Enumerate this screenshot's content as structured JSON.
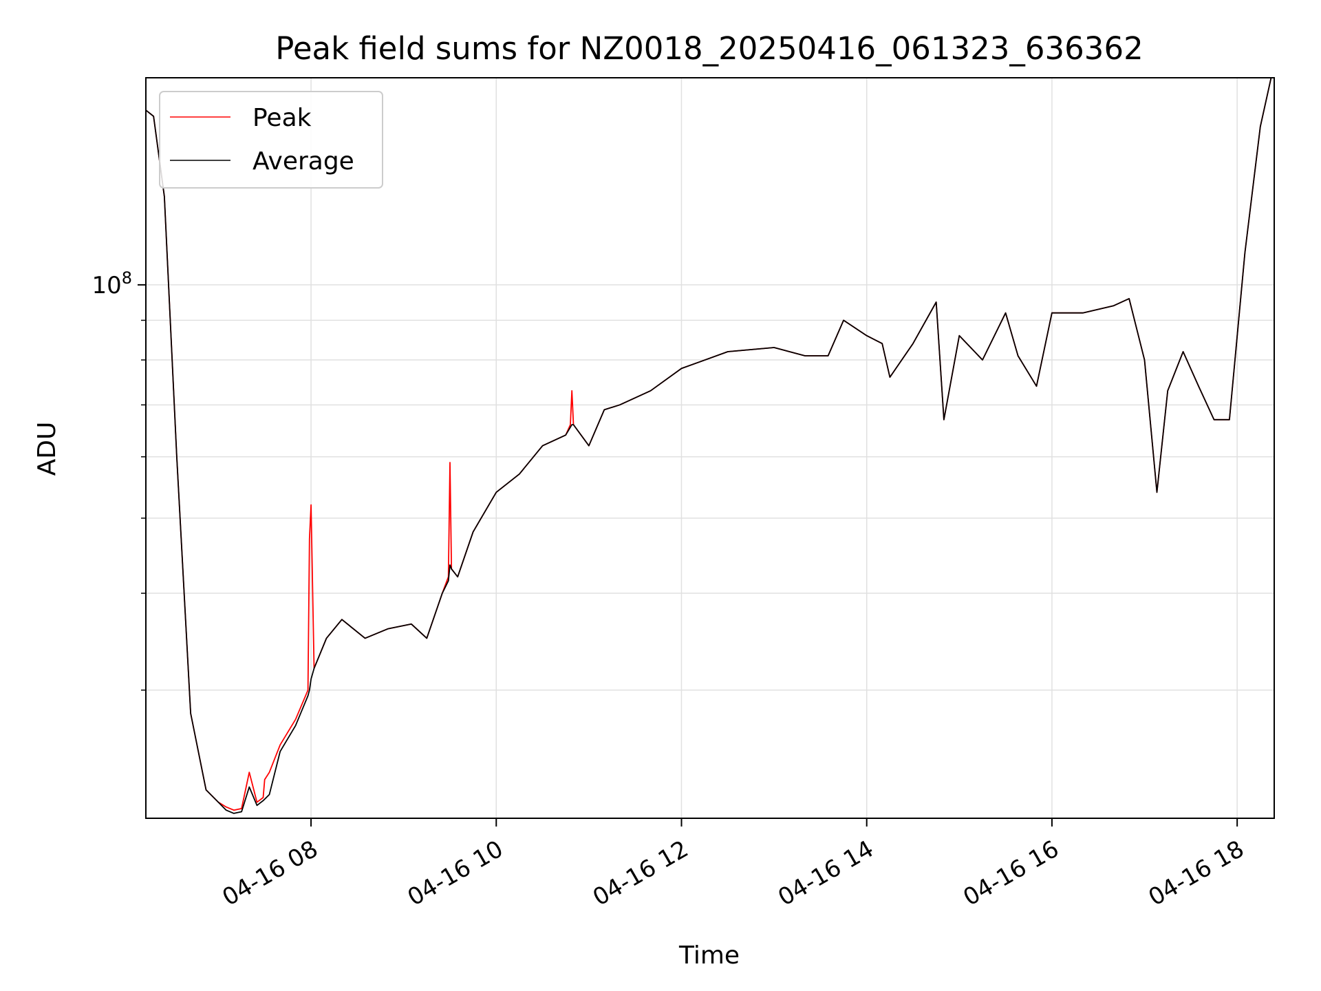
{
  "chart_data": {
    "type": "line",
    "title": "Peak field sums for NZ0018_20250416_061323_636362",
    "xlabel": "Time",
    "ylabel": "ADU",
    "yscale": "log",
    "ylim": [
      20500000,
      185000000
    ],
    "x_tick_labels": [
      "04-16 08",
      "04-16 10",
      "04-16 12",
      "04-16 14",
      "04-16 16",
      "04-16 18"
    ],
    "x_ticks": [
      "2025-04-16 08:00",
      "2025-04-16 10:00",
      "2025-04-16 12:00",
      "2025-04-16 14:00",
      "2025-04-16 16:00",
      "2025-04-16 18:00"
    ],
    "xlim": [
      "2025-04-16 06:13",
      "2025-04-16 18:24"
    ],
    "y_tick_labels": [
      {
        "base": "10",
        "exp": "8",
        "value": 100000000
      }
    ],
    "grid": true,
    "legend_position": "upper left",
    "colors": {
      "peak": "#ff0000",
      "average": "#000000",
      "grid": "#e0e0e0"
    },
    "series": [
      {
        "name": "Peak",
        "x": [
          "2025-04-16 06:13",
          "2025-04-16 06:18",
          "2025-04-16 06:25",
          "2025-04-16 06:33",
          "2025-04-16 06:42",
          "2025-04-16 06:52",
          "2025-04-16 07:00",
          "2025-04-16 07:05",
          "2025-04-16 07:10",
          "2025-04-16 07:15",
          "2025-04-16 07:20",
          "2025-04-16 07:25",
          "2025-04-16 07:29",
          "2025-04-16 07:30",
          "2025-04-16 07:33",
          "2025-04-16 07:40",
          "2025-04-16 07:50",
          "2025-04-16 07:58",
          "2025-04-16 07:59",
          "2025-04-16 08:00",
          "2025-04-16 08:02",
          "2025-04-16 08:10",
          "2025-04-16 08:20",
          "2025-04-16 08:35",
          "2025-04-16 08:50",
          "2025-04-16 09:05",
          "2025-04-16 09:15",
          "2025-04-16 09:25",
          "2025-04-16 09:29",
          "2025-04-16 09:30",
          "2025-04-16 09:31",
          "2025-04-16 09:35",
          "2025-04-16 09:45",
          "2025-04-16 10:00",
          "2025-04-16 10:15",
          "2025-04-16 10:30",
          "2025-04-16 10:45",
          "2025-04-16 10:48",
          "2025-04-16 10:49",
          "2025-04-16 10:50",
          "2025-04-16 11:00",
          "2025-04-16 11:10",
          "2025-04-16 11:20",
          "2025-04-16 11:40",
          "2025-04-16 12:00",
          "2025-04-16 12:30",
          "2025-04-16 13:00",
          "2025-04-16 13:20",
          "2025-04-16 13:35",
          "2025-04-16 13:45",
          "2025-04-16 14:00",
          "2025-04-16 14:10",
          "2025-04-16 14:15",
          "2025-04-16 14:30",
          "2025-04-16 14:45",
          "2025-04-16 14:50",
          "2025-04-16 15:00",
          "2025-04-16 15:15",
          "2025-04-16 15:30",
          "2025-04-16 15:38",
          "2025-04-16 15:50",
          "2025-04-16 16:00",
          "2025-04-16 16:20",
          "2025-04-16 16:40",
          "2025-04-16 16:50",
          "2025-04-16 17:00",
          "2025-04-16 17:08",
          "2025-04-16 17:15",
          "2025-04-16 17:25",
          "2025-04-16 17:35",
          "2025-04-16 17:45",
          "2025-04-16 17:55",
          "2025-04-16 18:05",
          "2025-04-16 18:15",
          "2025-04-16 18:22"
        ],
        "values": [
          168000000,
          165000000,
          130000000,
          60000000,
          28000000,
          22300000,
          21500000,
          21200000,
          21000000,
          21100000,
          23500000,
          21500000,
          21800000,
          23000000,
          23500000,
          25500000,
          27500000,
          30000000,
          47000000,
          52000000,
          32000000,
          35000000,
          37000000,
          35000000,
          36000000,
          36500000,
          35000000,
          40000000,
          42000000,
          59000000,
          43000000,
          42000000,
          48000000,
          54000000,
          57000000,
          62000000,
          64000000,
          66000000,
          73000000,
          66000000,
          62000000,
          69000000,
          70000000,
          73000000,
          78000000,
          82000000,
          83000000,
          81000000,
          81000000,
          90000000,
          86000000,
          84000000,
          76000000,
          84000000,
          95000000,
          67000000,
          86000000,
          80000000,
          92000000,
          81000000,
          74000000,
          92000000,
          92000000,
          94000000,
          96000000,
          80000000,
          54000000,
          73000000,
          82000000,
          74000000,
          67000000,
          67000000,
          110000000,
          160000000,
          185000000
        ]
      },
      {
        "name": "Average",
        "x": [
          "2025-04-16 06:13",
          "2025-04-16 06:18",
          "2025-04-16 06:25",
          "2025-04-16 06:33",
          "2025-04-16 06:42",
          "2025-04-16 06:52",
          "2025-04-16 07:00",
          "2025-04-16 07:05",
          "2025-04-16 07:10",
          "2025-04-16 07:15",
          "2025-04-16 07:20",
          "2025-04-16 07:25",
          "2025-04-16 07:29",
          "2025-04-16 07:30",
          "2025-04-16 07:33",
          "2025-04-16 07:40",
          "2025-04-16 07:50",
          "2025-04-16 07:58",
          "2025-04-16 07:59",
          "2025-04-16 08:00",
          "2025-04-16 08:02",
          "2025-04-16 08:10",
          "2025-04-16 08:20",
          "2025-04-16 08:35",
          "2025-04-16 08:50",
          "2025-04-16 09:05",
          "2025-04-16 09:15",
          "2025-04-16 09:25",
          "2025-04-16 09:29",
          "2025-04-16 09:30",
          "2025-04-16 09:31",
          "2025-04-16 09:35",
          "2025-04-16 09:45",
          "2025-04-16 10:00",
          "2025-04-16 10:15",
          "2025-04-16 10:30",
          "2025-04-16 10:45",
          "2025-04-16 10:48",
          "2025-04-16 10:49",
          "2025-04-16 10:50",
          "2025-04-16 11:00",
          "2025-04-16 11:10",
          "2025-04-16 11:20",
          "2025-04-16 11:40",
          "2025-04-16 12:00",
          "2025-04-16 12:30",
          "2025-04-16 13:00",
          "2025-04-16 13:20",
          "2025-04-16 13:35",
          "2025-04-16 13:45",
          "2025-04-16 14:00",
          "2025-04-16 14:10",
          "2025-04-16 14:15",
          "2025-04-16 14:30",
          "2025-04-16 14:45",
          "2025-04-16 14:50",
          "2025-04-16 15:00",
          "2025-04-16 15:15",
          "2025-04-16 15:30",
          "2025-04-16 15:38",
          "2025-04-16 15:50",
          "2025-04-16 16:00",
          "2025-04-16 16:20",
          "2025-04-16 16:40",
          "2025-04-16 16:50",
          "2025-04-16 17:00",
          "2025-04-16 17:08",
          "2025-04-16 17:15",
          "2025-04-16 17:25",
          "2025-04-16 17:35",
          "2025-04-16 17:45",
          "2025-04-16 17:55",
          "2025-04-16 18:05",
          "2025-04-16 18:15",
          "2025-04-16 18:22"
        ],
        "values": [
          168000000,
          165000000,
          130000000,
          60000000,
          28000000,
          22300000,
          21500000,
          21000000,
          20800000,
          20900000,
          22500000,
          21300000,
          21600000,
          21700000,
          22000000,
          25000000,
          27000000,
          29500000,
          30000000,
          31000000,
          32000000,
          35000000,
          37000000,
          35000000,
          36000000,
          36500000,
          35000000,
          40000000,
          41500000,
          43500000,
          43000000,
          42000000,
          48000000,
          54000000,
          57000000,
          62000000,
          64000000,
          65500000,
          66000000,
          66000000,
          62000000,
          69000000,
          70000000,
          73000000,
          78000000,
          82000000,
          83000000,
          81000000,
          81000000,
          90000000,
          86000000,
          84000000,
          76000000,
          84000000,
          95000000,
          67000000,
          86000000,
          80000000,
          92000000,
          81000000,
          74000000,
          92000000,
          92000000,
          94000000,
          96000000,
          80000000,
          54000000,
          73000000,
          82000000,
          74000000,
          67000000,
          67000000,
          110000000,
          160000000,
          185000000
        ]
      }
    ]
  }
}
